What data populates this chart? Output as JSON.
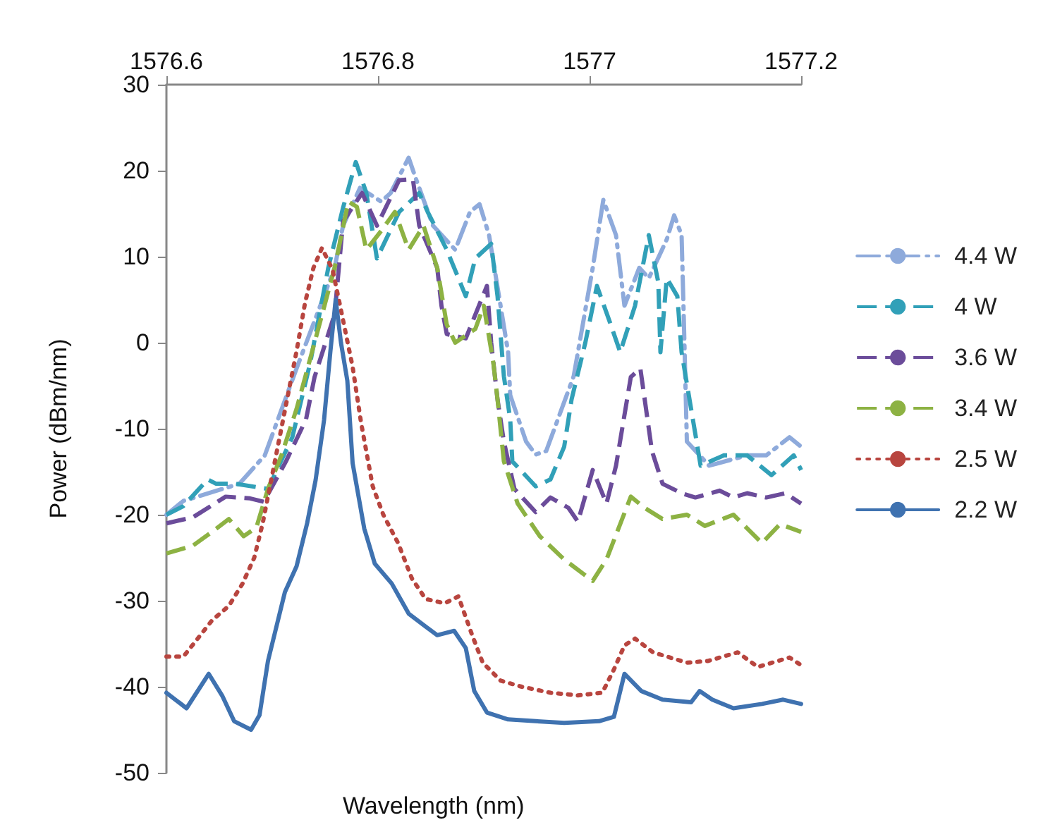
{
  "chart_data": {
    "type": "line",
    "xlabel": "Wavelength (nm)",
    "ylabel": "Power (dBm/nm)",
    "xlim": [
      1576.6,
      1577.2
    ],
    "xticks": [
      1576.6,
      1576.8,
      1577,
      1577.2
    ],
    "ylim": [
      -50,
      30
    ],
    "yticks": [
      -50,
      -40,
      -30,
      -20,
      -10,
      0,
      10,
      20,
      30
    ],
    "grid": false,
    "legend": "right",
    "marker": "none",
    "series": [
      {
        "name": "4.4 W",
        "color": "#8eaadb",
        "line_style": "dashdot",
        "x": [
          1576.6,
          1576.616,
          1576.669,
          1576.693,
          1576.723,
          1576.759,
          1576.767,
          1576.783,
          1576.803,
          1576.812,
          1576.829,
          1576.836,
          1576.852,
          1576.873,
          1576.887,
          1576.896,
          1576.905,
          1576.923,
          1576.925,
          1576.94,
          1576.949,
          1576.959,
          1576.985,
          1577.003,
          1577.013,
          1577.025,
          1577.033,
          1577.047,
          1577.056,
          1577.073,
          1577.08,
          1577.087,
          1577.089,
          1577.091,
          1577.092,
          1577.113,
          1577.149,
          1577.167,
          1577.189,
          1577.2
        ],
        "values": [
          -20,
          -18.4,
          -16.4,
          -13.1,
          -3,
          8.7,
          13.6,
          18,
          16.4,
          17.4,
          21.5,
          19,
          13.6,
          10.8,
          15.2,
          16.1,
          12.5,
          -1.1,
          -6.1,
          -11.5,
          -13,
          -12.6,
          -3.9,
          8.7,
          16.6,
          12.5,
          4.3,
          8.7,
          7.5,
          12,
          14.8,
          12.5,
          3.3,
          -6.6,
          -11.5,
          -14.3,
          -13.1,
          -13.1,
          -11,
          -12.1
        ]
      },
      {
        "name": "4 W",
        "color": "#31a0b8",
        "line_style": "dashed",
        "x": [
          1576.6,
          1576.616,
          1576.639,
          1576.647,
          1576.665,
          1576.696,
          1576.719,
          1576.736,
          1576.753,
          1576.767,
          1576.779,
          1576.789,
          1576.799,
          1576.82,
          1576.839,
          1576.847,
          1576.865,
          1576.883,
          1576.892,
          1576.907,
          1576.913,
          1576.919,
          1576.925,
          1576.927,
          1576.949,
          1576.963,
          1576.976,
          1576.983,
          1576.996,
          1577.007,
          1577.02,
          1577.029,
          1577.043,
          1577.056,
          1577.065,
          1577.067,
          1577.073,
          1577.083,
          1577.087,
          1577.096,
          1577.105,
          1577.127,
          1577.149,
          1577.172,
          1577.193,
          1577.2
        ],
        "values": [
          -20,
          -19,
          -15.9,
          -16.4,
          -16.4,
          -17,
          -11,
          -2.3,
          8.7,
          15.7,
          21,
          17.4,
          9.8,
          15.2,
          17.4,
          15.2,
          10.8,
          5.4,
          9.8,
          11.5,
          5.4,
          -3.9,
          -8.9,
          -13.8,
          -16.7,
          -15.9,
          -12.1,
          -6.6,
          0,
          6.6,
          2.1,
          -1.1,
          4.3,
          12.5,
          7,
          -1.1,
          7.5,
          5.4,
          -1.1,
          -7.7,
          -14.3,
          -13.1,
          -13.1,
          -15.4,
          -13.1,
          -14.8
        ]
      },
      {
        "name": "3.6 W",
        "color": "#6b4c9a",
        "line_style": "dashed",
        "x": [
          1576.6,
          1576.625,
          1576.656,
          1576.679,
          1576.692,
          1576.713,
          1576.732,
          1576.74,
          1576.759,
          1576.767,
          1576.785,
          1576.799,
          1576.82,
          1576.833,
          1576.839,
          1576.856,
          1576.86,
          1576.865,
          1576.883,
          1576.903,
          1576.907,
          1576.913,
          1576.919,
          1576.929,
          1576.949,
          1576.963,
          1576.98,
          1576.989,
          1577.003,
          1577.016,
          1577.025,
          1577.039,
          1577.048,
          1577.059,
          1577.069,
          1577.087,
          1577.1,
          1577.123,
          1577.136,
          1577.149,
          1577.167,
          1577.185,
          1577.2
        ],
        "values": [
          -21,
          -20.3,
          -17.9,
          -18.1,
          -18.5,
          -13.8,
          -8.9,
          -4,
          3.3,
          14.1,
          17.4,
          13.6,
          18.9,
          19,
          13.6,
          8.7,
          4.3,
          1,
          0.5,
          6.6,
          0,
          -6.6,
          -11.5,
          -17,
          -19.7,
          -18,
          -19.2,
          -20.8,
          -14.8,
          -18.7,
          -14.3,
          -4,
          -3,
          -12.6,
          -16.4,
          -17.5,
          -18,
          -17.2,
          -18,
          -17.5,
          -18,
          -17.5,
          -18.7
        ]
      },
      {
        "name": "3.4 W",
        "color": "#8db243",
        "line_style": "dashed",
        "x": [
          1576.6,
          1576.625,
          1576.643,
          1576.659,
          1576.673,
          1576.685,
          1576.696,
          1576.709,
          1576.723,
          1576.74,
          1576.759,
          1576.772,
          1576.78,
          1576.789,
          1576.803,
          1576.816,
          1576.829,
          1576.843,
          1576.856,
          1576.865,
          1576.873,
          1576.892,
          1576.9,
          1576.909,
          1576.913,
          1576.919,
          1576.932,
          1576.953,
          1576.976,
          1577.003,
          1577.016,
          1577.039,
          1577.052,
          1577.069,
          1577.092,
          1577.109,
          1577.136,
          1577.163,
          1577.18,
          1577.2
        ],
        "values": [
          -24.5,
          -23.6,
          -22,
          -20.5,
          -22.5,
          -21.5,
          -17,
          -13,
          -7.7,
          0,
          8.7,
          16.4,
          15.8,
          10.8,
          13,
          15.2,
          10.8,
          13.6,
          8.7,
          2.1,
          0,
          1.6,
          4.3,
          -2.3,
          -6.6,
          -13.8,
          -18.7,
          -22.5,
          -25.2,
          -27.7,
          -25.2,
          -17.9,
          -19.2,
          -20.5,
          -20,
          -21.3,
          -20,
          -23.3,
          -21.1,
          -22
        ]
      },
      {
        "name": "2.5 W",
        "color": "#b8453f",
        "line_style": "dotted",
        "x": [
          1576.6,
          1576.616,
          1576.627,
          1576.643,
          1576.659,
          1576.672,
          1576.683,
          1576.691,
          1576.699,
          1576.707,
          1576.715,
          1576.723,
          1576.731,
          1576.739,
          1576.747,
          1576.757,
          1576.765,
          1576.776,
          1576.784,
          1576.795,
          1576.805,
          1576.819,
          1576.832,
          1576.845,
          1576.863,
          1576.876,
          1576.889,
          1576.899,
          1576.916,
          1576.936,
          1576.963,
          1576.989,
          1577.012,
          1577.023,
          1577.033,
          1577.043,
          1577.06,
          1577.092,
          1577.112,
          1577.14,
          1577.159,
          1577.189,
          1577.2
        ],
        "values": [
          -36.5,
          -36.5,
          -34.8,
          -32.3,
          -30.6,
          -28,
          -25,
          -21,
          -16,
          -11,
          -6,
          -1,
          4.6,
          8.7,
          11,
          8.5,
          3.8,
          -2.8,
          -9.3,
          -16.7,
          -20,
          -23.3,
          -27.4,
          -29.8,
          -30.3,
          -29.5,
          -34,
          -37.2,
          -39.3,
          -40,
          -40.7,
          -41,
          -40.7,
          -38,
          -35.2,
          -34.4,
          -36,
          -37.2,
          -37,
          -36,
          -37.7,
          -36.6,
          -37.5
        ]
      },
      {
        "name": "2.2 W",
        "color": "#3f72b0",
        "line_style": "solid",
        "x": [
          1576.6,
          1576.619,
          1576.64,
          1576.653,
          1576.664,
          1576.68,
          1576.688,
          1576.696,
          1576.704,
          1576.712,
          1576.723,
          1576.733,
          1576.741,
          1576.749,
          1576.755,
          1576.76,
          1576.765,
          1576.771,
          1576.776,
          1576.787,
          1576.797,
          1576.813,
          1576.829,
          1576.845,
          1576.856,
          1576.872,
          1576.883,
          1576.891,
          1576.903,
          1576.923,
          1576.949,
          1576.976,
          1577.009,
          1577.023,
          1577.033,
          1577.049,
          1577.069,
          1577.096,
          1577.104,
          1577.116,
          1577.136,
          1577.163,
          1577.183,
          1577.2
        ],
        "values": [
          -40.7,
          -42.5,
          -38.5,
          -41.1,
          -44,
          -45,
          -43.3,
          -37,
          -33,
          -29,
          -26,
          -21,
          -16,
          -9,
          -1,
          5,
          0,
          -4.4,
          -14,
          -21.6,
          -25.7,
          -28,
          -31.5,
          -33,
          -34,
          -33.5,
          -35.5,
          -40.5,
          -43,
          -43.8,
          -44,
          -44.2,
          -44,
          -43.5,
          -38.5,
          -40.5,
          -41.5,
          -41.8,
          -40.5,
          -41.5,
          -42.5,
          -42,
          -41.5,
          -42
        ]
      }
    ]
  }
}
